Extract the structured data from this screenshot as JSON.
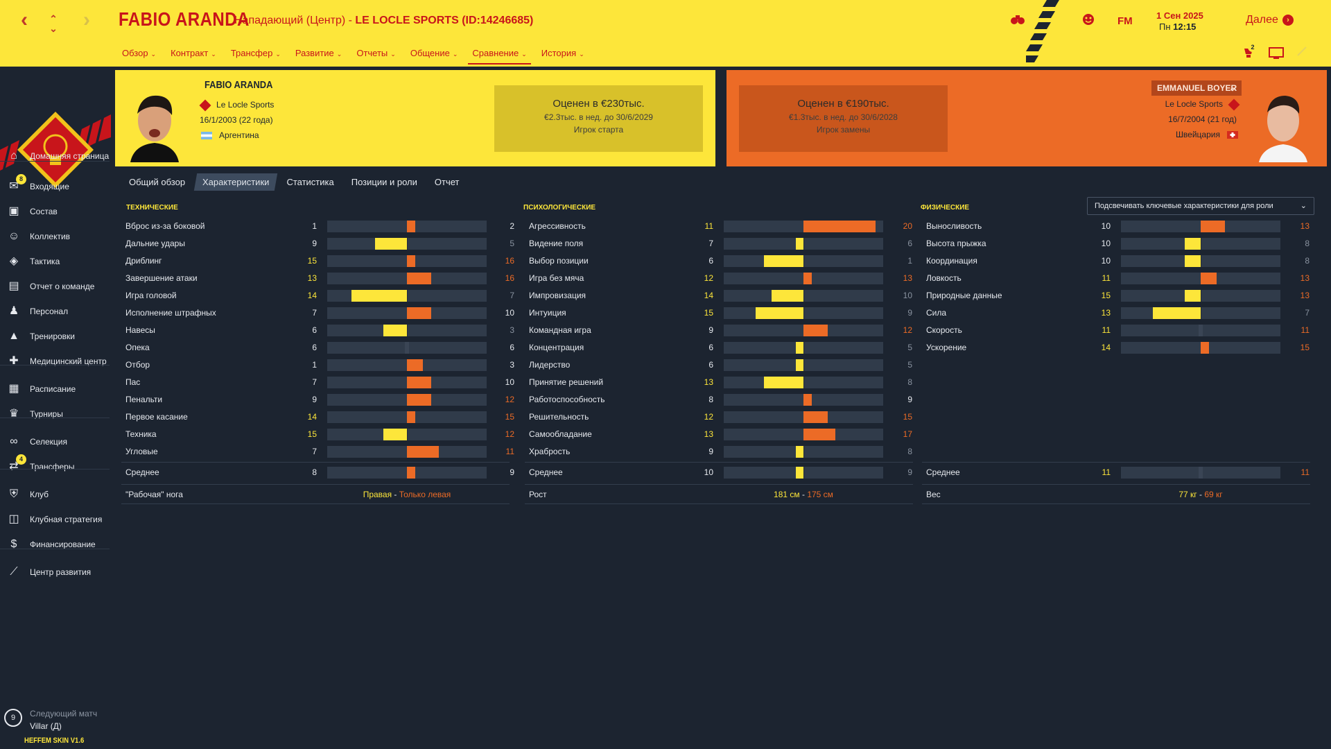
{
  "header": {
    "player_name": "FABIO ARANDA",
    "subtitle_pre": "Нападающий (Центр) - ",
    "subtitle_club": "LE LOCLE SPORTS (ID:14246685)",
    "menu": [
      "Обзор",
      "Контракт",
      "Трансфер",
      "Развитие",
      "Отчеты",
      "Общение",
      "Сравнение",
      "История"
    ],
    "fm_label": "FM",
    "date": "1 Сен 2025",
    "day": "Пн",
    "time": "12:15",
    "continue_label": "Далее",
    "notif_count": "2"
  },
  "sidebar": {
    "items": [
      {
        "label": "Домашняя страница",
        "icon": "home-icon"
      },
      {
        "label": "Входящие",
        "icon": "inbox-icon",
        "badge": "8"
      },
      {
        "label": "Состав",
        "icon": "shirt-icon"
      },
      {
        "label": "Коллектив",
        "icon": "group-icon"
      },
      {
        "label": "Тактика",
        "icon": "tactics-icon"
      },
      {
        "label": "Отчет о команде",
        "icon": "report-icon"
      },
      {
        "label": "Персонал",
        "icon": "staff-icon"
      },
      {
        "label": "Тренировки",
        "icon": "training-icon"
      },
      {
        "label": "Медицинский центр",
        "icon": "medical-icon"
      },
      {
        "label": "Расписание",
        "icon": "calendar-icon"
      },
      {
        "label": "Турниры",
        "icon": "trophy-icon"
      },
      {
        "label": "Селекция",
        "icon": "binoculars-icon"
      },
      {
        "label": "Трансферы",
        "icon": "transfers-icon",
        "badge": "4"
      },
      {
        "label": "Клуб",
        "icon": "club-icon"
      },
      {
        "label": "Клубная стратегия",
        "icon": "strategy-icon"
      },
      {
        "label": "Финансирование",
        "icon": "finance-icon"
      },
      {
        "label": "Центр развития",
        "icon": "development-icon"
      }
    ],
    "next_match_label": "Следующий матч",
    "next_match_opp": "Villar (Д)",
    "next_match_days": "9",
    "skin": "HEFFEM SKIN V1.6"
  },
  "left_player": {
    "name": "FABIO ARANDA",
    "club": "Le Locle Sports",
    "dob": "16/1/2003 (22 года)",
    "nation": "Аргентина",
    "value": "Оценен в €230тыс.",
    "wage": "€2.3тыс. в нед. до 30/6/2029",
    "role": "Игрок старта"
  },
  "right_player": {
    "name": "EMMANUEL BOYER",
    "club": "Le Locle Sports",
    "dob": "16/7/2004 (21 год)",
    "nation": "Швейцария",
    "value": "Оценен в €190тыс.",
    "wage": "€1.3тыс. в нед. до 30/6/2028",
    "role": "Игрок замены"
  },
  "tabs": [
    "Общий обзор",
    "Характеристики",
    "Статистика",
    "Позиции и роли",
    "Отчет"
  ],
  "role_dropdown": "Подсвечивать ключевые характеристики для роли",
  "colors": {
    "yellow": "#fde63a",
    "orange": "#ec6b26",
    "bg": "#1c2430",
    "bar": "#303b4a"
  },
  "groups": [
    {
      "title": "ТЕХНИЧЕСКИЕ",
      "attrs": [
        {
          "name": "Вброс из-за боковой",
          "a": 1,
          "b": 2
        },
        {
          "name": "Дальние удары",
          "a": 9,
          "b": 5
        },
        {
          "name": "Дриблинг",
          "a": 15,
          "b": 16
        },
        {
          "name": "Завершение атаки",
          "a": 13,
          "b": 16
        },
        {
          "name": "Игра головой",
          "a": 14,
          "b": 7
        },
        {
          "name": "Исполнение штрафных",
          "a": 7,
          "b": 10
        },
        {
          "name": "Навесы",
          "a": 6,
          "b": 3
        },
        {
          "name": "Опека",
          "a": 6,
          "b": 6
        },
        {
          "name": "Отбор",
          "a": 1,
          "b": 3
        },
        {
          "name": "Пас",
          "a": 7,
          "b": 10
        },
        {
          "name": "Пенальти",
          "a": 9,
          "b": 12
        },
        {
          "name": "Первое касание",
          "a": 14,
          "b": 15
        },
        {
          "name": "Техника",
          "a": 15,
          "b": 12
        },
        {
          "name": "Угловые",
          "a": 7,
          "b": 11
        }
      ],
      "avg_label": "Среднее",
      "avg_a": 8,
      "avg_b": 9,
      "extra_label": "\"Рабочая\" нога",
      "extra_a": "Правая",
      "extra_b": "Только левая"
    },
    {
      "title": "ПСИХОЛОГИЧЕСКИЕ",
      "attrs": [
        {
          "name": "Агрессивность",
          "a": 11,
          "b": 20
        },
        {
          "name": "Видение поля",
          "a": 7,
          "b": 6
        },
        {
          "name": "Выбор позиции",
          "a": 6,
          "b": 1
        },
        {
          "name": "Игра без мяча",
          "a": 12,
          "b": 13
        },
        {
          "name": "Импровизация",
          "a": 14,
          "b": 10
        },
        {
          "name": "Интуиция",
          "a": 15,
          "b": 9
        },
        {
          "name": "Командная игра",
          "a": 9,
          "b": 12
        },
        {
          "name": "Концентрация",
          "a": 6,
          "b": 5
        },
        {
          "name": "Лидерство",
          "a": 6,
          "b": 5
        },
        {
          "name": "Принятие решений",
          "a": 13,
          "b": 8
        },
        {
          "name": "Работоспособность",
          "a": 8,
          "b": 9
        },
        {
          "name": "Решительность",
          "a": 12,
          "b": 15
        },
        {
          "name": "Самообладание",
          "a": 13,
          "b": 17
        },
        {
          "name": "Храбрость",
          "a": 9,
          "b": 8
        }
      ],
      "avg_label": "Среднее",
      "avg_a": 10,
      "avg_b": 9,
      "extra_label": "Рост",
      "extra_a": "181 см",
      "extra_b": "175 см"
    },
    {
      "title": "ФИЗИЧЕСКИЕ",
      "attrs": [
        {
          "name": "Выносливость",
          "a": 10,
          "b": 13
        },
        {
          "name": "Высота прыжка",
          "a": 10,
          "b": 8
        },
        {
          "name": "Координация",
          "a": 10,
          "b": 8
        },
        {
          "name": "Ловкость",
          "a": 11,
          "b": 13
        },
        {
          "name": "Природные данные",
          "a": 15,
          "b": 13
        },
        {
          "name": "Сила",
          "a": 13,
          "b": 7
        },
        {
          "name": "Скорость",
          "a": 11,
          "b": 11
        },
        {
          "name": "Ускорение",
          "a": 14,
          "b": 15
        }
      ],
      "avg_label": "Среднее",
      "avg_a": 11,
      "avg_b": 11,
      "extra_label": "Вес",
      "extra_a": "77 кг",
      "extra_b": "69 кг"
    }
  ]
}
